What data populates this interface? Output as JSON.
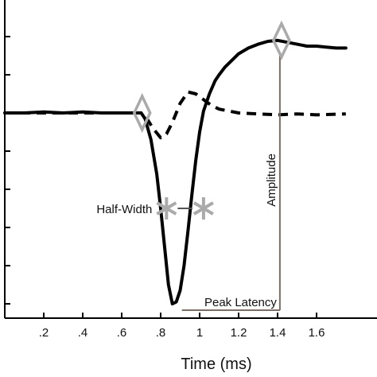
{
  "chart_data": {
    "type": "line",
    "xlabel": "Time (ms)",
    "xlim": [
      0,
      1.75
    ],
    "ylim": [
      -1.05,
      0.45
    ],
    "x_ticks": [
      0,
      0.2,
      0.4,
      0.6,
      0.8,
      1.0,
      1.2,
      1.4,
      1.6
    ],
    "x_tick_labels": [
      "",
      ".2",
      ".4",
      ".6",
      ".8",
      "1",
      "1.2",
      "1.4",
      "1.6"
    ],
    "y_ticks": [
      0.4,
      0.2,
      0.0,
      -0.2,
      -0.4,
      -0.6,
      -0.8,
      -1.0
    ],
    "grid": false,
    "legend": "none",
    "series": [
      {
        "style": "solid",
        "color": "#000000",
        "x": [
          0,
          0.1,
          0.2,
          0.3,
          0.4,
          0.5,
          0.6,
          0.65,
          0.7,
          0.72,
          0.75,
          0.78,
          0.8,
          0.82,
          0.84,
          0.86,
          0.88,
          0.9,
          0.92,
          0.94,
          0.96,
          0.98,
          1.0,
          1.02,
          1.05,
          1.08,
          1.1,
          1.13,
          1.16,
          1.2,
          1.25,
          1.3,
          1.35,
          1.4,
          1.45,
          1.5,
          1.55,
          1.6,
          1.65,
          1.7,
          1.75
        ],
        "y": [
          0.0,
          0.0,
          0.005,
          0.0,
          0.005,
          0.0,
          0.0,
          0.0,
          0.0,
          -0.03,
          -0.14,
          -0.32,
          -0.5,
          -0.7,
          -0.9,
          -1.0,
          -0.99,
          -0.93,
          -0.8,
          -0.62,
          -0.43,
          -0.25,
          -0.1,
          0.01,
          0.1,
          0.17,
          0.2,
          0.24,
          0.27,
          0.31,
          0.34,
          0.36,
          0.375,
          0.38,
          0.37,
          0.36,
          0.35,
          0.35,
          0.345,
          0.34,
          0.34
        ]
      },
      {
        "style": "dashed",
        "color": "#000000",
        "x": [
          0,
          0.2,
          0.4,
          0.6,
          0.7,
          0.73,
          0.76,
          0.8,
          0.83,
          0.86,
          0.9,
          0.94,
          0.98,
          1.02,
          1.06,
          1.1,
          1.15,
          1.2,
          1.3,
          1.4,
          1.5,
          1.6,
          1.75
        ],
        "y": [
          0.0,
          0.0,
          0.0,
          0.0,
          0.0,
          -0.03,
          -0.08,
          -0.13,
          -0.11,
          -0.05,
          0.05,
          0.11,
          0.1,
          0.07,
          0.04,
          0.02,
          0.01,
          0.0,
          -0.005,
          -0.01,
          -0.005,
          -0.01,
          -0.005
        ]
      }
    ],
    "markers": {
      "diamonds": [
        {
          "x": 0.705,
          "y": 0.0
        },
        {
          "x": 1.42,
          "y": 0.38
        }
      ],
      "stars": [
        {
          "x": 0.83,
          "y": -0.5
        },
        {
          "x": 1.02,
          "y": -0.5
        }
      ],
      "color": "#aaaaaa"
    },
    "annotations": {
      "half_width": "Half-Width",
      "amplitude": "Amplitude",
      "peak_latency": "Peak Latency"
    },
    "annotation_color": "#7a6e65"
  }
}
